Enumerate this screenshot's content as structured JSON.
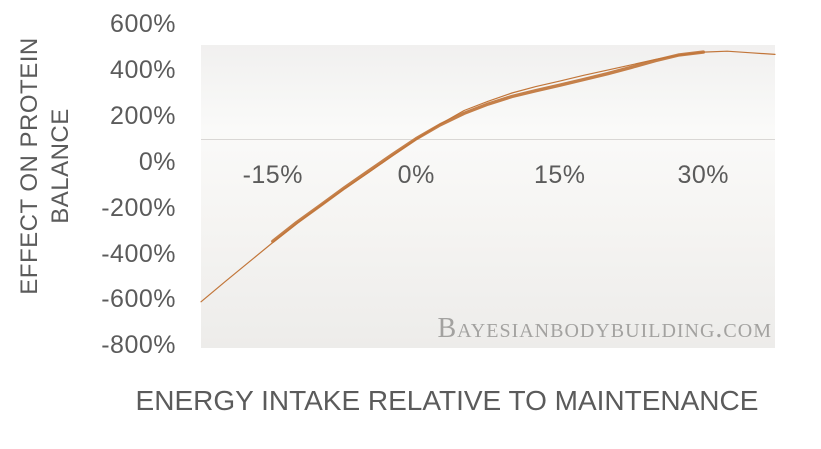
{
  "page": {
    "background": "#ffffff",
    "watermark": "Bayesianbodybuilding.com"
  },
  "colors": {
    "data_line": "#c5804a",
    "trend_line": "#c2763a",
    "axis_text": "#5b5b5b",
    "axis_line": "#d9d7d5",
    "watermark_text": "#a3a2a0"
  },
  "chart_data": {
    "type": "line",
    "title": "",
    "xlabel": "ENERGY INTAKE RELATIVE TO MAINTENANCE",
    "ylabel_lines": {
      "line1": "EFFECT ON PROTEIN",
      "line2": "BALANCE"
    },
    "x_range": [
      -22.5,
      37.5
    ],
    "y_range": [
      -811,
      507
    ],
    "category_axis_crosses_at": 100,
    "grid": "off",
    "legend": "none",
    "x_ticks": [
      {
        "label": "-15%",
        "value": -15
      },
      {
        "label": "0%",
        "value": 0
      },
      {
        "label": "15%",
        "value": 15
      },
      {
        "label": "30%",
        "value": 30
      }
    ],
    "y_ticks": [
      {
        "label": "600%",
        "value": 600
      },
      {
        "label": "400%",
        "value": 400
      },
      {
        "label": "200%",
        "value": 200
      },
      {
        "label": "0%",
        "value": 0
      },
      {
        "label": "-200%",
        "value": -200
      },
      {
        "label": "-400%",
        "value": -400
      },
      {
        "label": "-600%",
        "value": -600
      },
      {
        "label": "-800%",
        "value": -800
      }
    ],
    "series": [
      {
        "name": "trend-line",
        "stroke_width": 1.2,
        "color": "#c2763a",
        "x": [
          -22.5,
          -20,
          -17.5,
          -15,
          -12.5,
          -10,
          -7.5,
          -5,
          -2.5,
          0,
          2.5,
          5,
          7.5,
          10,
          12.5,
          15,
          17.5,
          20,
          22.5,
          25,
          27.5,
          30,
          32.5,
          35,
          37.5
        ],
        "y": [
          -610,
          -523,
          -438,
          -352,
          -270,
          -192,
          -118,
          -48,
          25,
          97,
          163,
          222,
          262,
          298,
          326,
          350,
          375,
          398,
          421,
          444,
          463,
          476,
          480,
          473,
          466
        ]
      },
      {
        "name": "protein-balance-data",
        "stroke_width": 3.4,
        "color": "#c5804a",
        "x": [
          -15,
          -12.5,
          -10,
          -7.5,
          -5,
          -2.5,
          0,
          2.5,
          5,
          7.5,
          10,
          12.5,
          15,
          17.5,
          20,
          22.5,
          25,
          27.5,
          30
        ],
        "y": [
          -347,
          -265,
          -190,
          -114,
          -42,
          30,
          100,
          160,
          210,
          250,
          283,
          308,
          332,
          357,
          382,
          410,
          439,
          464,
          476
        ]
      }
    ]
  }
}
